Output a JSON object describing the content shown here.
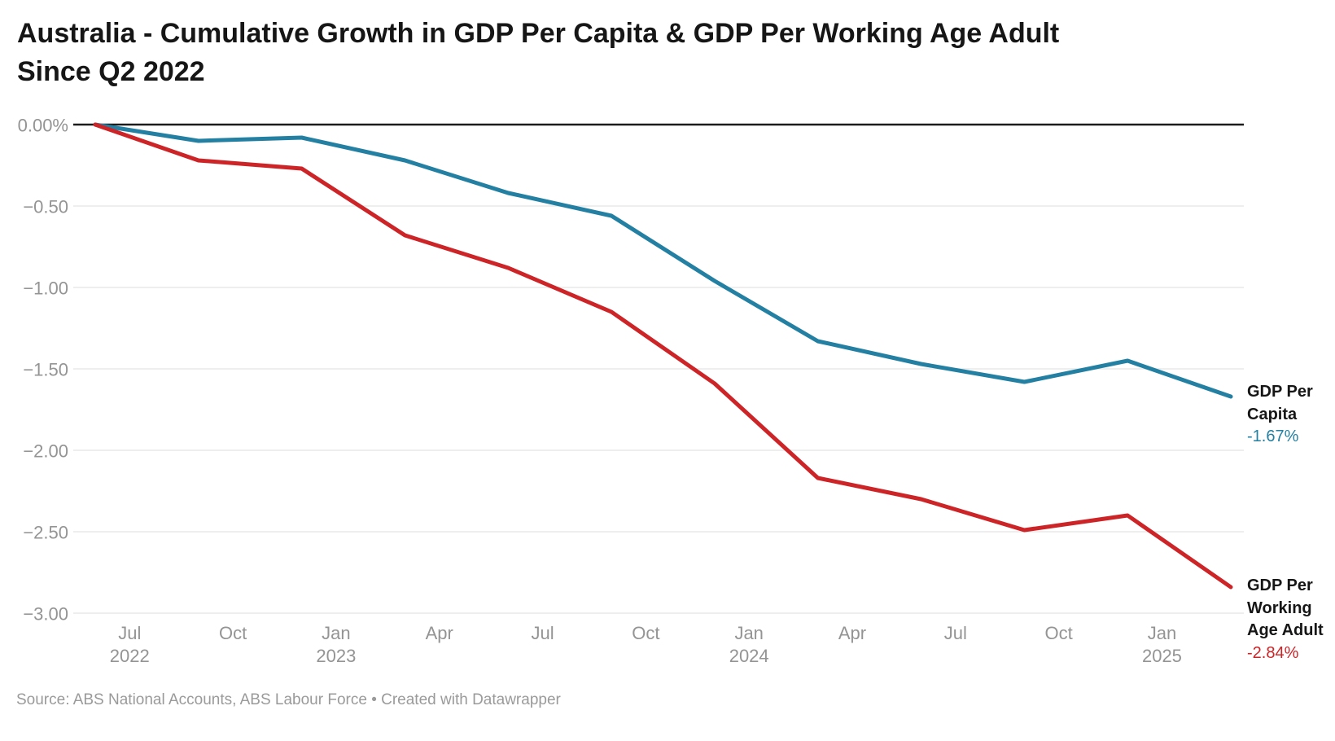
{
  "header": {
    "title_line1": "Australia - Cumulative Growth in GDP Per Capita & GDP Per Working Age Adult",
    "title_line2": "Since Q2 2022"
  },
  "footer": {
    "source_text": "Source: ABS National Accounts, ABS Labour Force • Created with Datawrapper"
  },
  "chart_data": {
    "type": "line",
    "title": "Australia - Cumulative Growth in GDP Per Capita & GDP Per Working Age Adult Since Q2 2022",
    "x_unit": "quarter",
    "categories": [
      "Q2 2022",
      "Q3 2022",
      "Q4 2022",
      "Q1 2023",
      "Q2 2023",
      "Q3 2023",
      "Q4 2023",
      "Q1 2024",
      "Q2 2024",
      "Q3 2024",
      "Q4 2024",
      "Q1 2025"
    ],
    "series": [
      {
        "name": "GDP Per Capita",
        "end_label": "-1.67%",
        "color": "#2380a2",
        "values": [
          0.0,
          -0.1,
          -0.08,
          -0.22,
          -0.42,
          -0.56,
          -0.96,
          -1.33,
          -1.47,
          -1.58,
          -1.45,
          -1.67
        ]
      },
      {
        "name": "GDP Per Working Age Adult",
        "end_label": "-2.84%",
        "color": "#cd2427",
        "values": [
          0.0,
          -0.22,
          -0.27,
          -0.68,
          -0.88,
          -1.15,
          -1.59,
          -2.17,
          -2.3,
          -2.49,
          -2.4,
          -2.84
        ]
      }
    ],
    "y_ticks": [
      {
        "value": 0.0,
        "label": "0.00%"
      },
      {
        "value": -0.5,
        "label": "−0.50"
      },
      {
        "value": -1.0,
        "label": "−1.00"
      },
      {
        "value": -1.5,
        "label": "−1.50"
      },
      {
        "value": -2.0,
        "label": "−2.00"
      },
      {
        "value": -2.5,
        "label": "−2.50"
      },
      {
        "value": -3.0,
        "label": "−3.00"
      }
    ],
    "x_ticks": [
      {
        "month": "Jul",
        "year": "2022",
        "month_index": 1
      },
      {
        "month": "Oct",
        "year": "",
        "month_index": 4
      },
      {
        "month": "Jan",
        "year": "2023",
        "month_index": 7
      },
      {
        "month": "Apr",
        "year": "",
        "month_index": 10
      },
      {
        "month": "Jul",
        "year": "",
        "month_index": 13
      },
      {
        "month": "Oct",
        "year": "",
        "month_index": 16
      },
      {
        "month": "Jan",
        "year": "2024",
        "month_index": 19
      },
      {
        "month": "Apr",
        "year": "",
        "month_index": 22
      },
      {
        "month": "Jul",
        "year": "",
        "month_index": 25
      },
      {
        "month": "Oct",
        "year": "",
        "month_index": 28
      },
      {
        "month": "Jan",
        "year": "2025",
        "month_index": 31
      }
    ],
    "ylim": [
      -3.0,
      0.0
    ],
    "grid": "horizontal",
    "legend_position": "line-end-labels-right",
    "colors": {
      "zero_line": "#1c1c1c",
      "gridline": "#e8e8e8",
      "axis_text": "#949494",
      "title_text": "#161616",
      "footer_text": "#9a9a9a"
    }
  }
}
